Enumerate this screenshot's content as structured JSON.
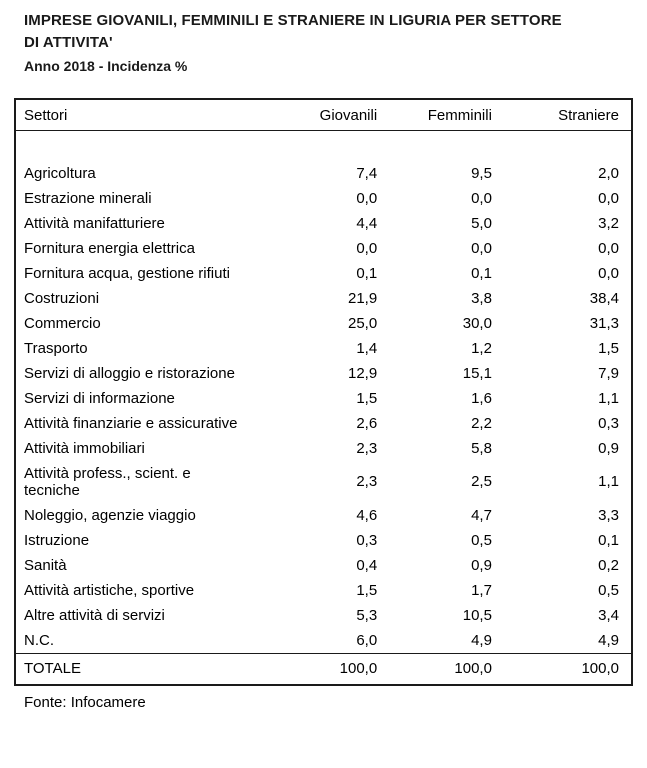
{
  "title": "IMPRESE GIOVANILI, FEMMINILI E STRANIERE IN LIGURIA PER SETTORE\nDI ATTIVITA'",
  "subtitle": "Anno 2018 - Incidenza %",
  "table": {
    "headers": [
      "Settori",
      "Giovanili",
      "Femminili",
      "Straniere"
    ],
    "rows": [
      [
        "Agricoltura",
        "7,4",
        "9,5",
        "2,0"
      ],
      [
        "Estrazione minerali",
        "0,0",
        "0,0",
        "0,0"
      ],
      [
        "Attività manifatturiere",
        "4,4",
        "5,0",
        "3,2"
      ],
      [
        "Fornitura energia elettrica",
        "0,0",
        "0,0",
        "0,0"
      ],
      [
        "Fornitura acqua, gestione rifiuti",
        "0,1",
        "0,1",
        "0,0"
      ],
      [
        "Costruzioni",
        "21,9",
        "3,8",
        "38,4"
      ],
      [
        "Commercio",
        "25,0",
        "30,0",
        "31,3"
      ],
      [
        "Trasporto",
        "1,4",
        "1,2",
        "1,5"
      ],
      [
        "Servizi di alloggio e ristorazione",
        "12,9",
        "15,1",
        "7,9"
      ],
      [
        "Servizi di informazione",
        "1,5",
        "1,6",
        "1,1"
      ],
      [
        "Attività finanziarie e assicurative",
        "2,6",
        "2,2",
        "0,3"
      ],
      [
        "Attività immobiliari",
        "2,3",
        "5,8",
        "0,9"
      ],
      [
        "Attività profess., scient. e\ntecniche",
        "2,3",
        "2,5",
        "1,1"
      ],
      [
        "Noleggio, agenzie viaggio",
        "4,6",
        "4,7",
        "3,3"
      ],
      [
        "Istruzione",
        "0,3",
        "0,5",
        "0,1"
      ],
      [
        "Sanità",
        "0,4",
        "0,9",
        "0,2"
      ],
      [
        "Attività artistiche, sportive",
        "1,5",
        "1,7",
        "0,5"
      ],
      [
        "Altre attività di servizi",
        "5,3",
        "10,5",
        "3,4"
      ],
      [
        "N.C.",
        "6,0",
        "4,9",
        "4,9"
      ]
    ],
    "total": {
      "label": "TOTALE",
      "values": [
        "100,0",
        "100,0",
        "100,0"
      ]
    }
  },
  "source": "Fonte: Infocamere",
  "chart_data": {
    "type": "table",
    "title": "IMPRESE GIOVANILI, FEMMINILI E STRANIERE IN LIGURIA PER SETTORE DI ATTIVITA'",
    "subtitle": "Anno 2018 - Incidenza %",
    "columns": [
      "Settori",
      "Giovanili",
      "Femminili",
      "Straniere"
    ],
    "categories": [
      "Agricoltura",
      "Estrazione minerali",
      "Attività manifatturiere",
      "Fornitura energia elettrica",
      "Fornitura acqua, gestione rifiuti",
      "Costruzioni",
      "Commercio",
      "Trasporto",
      "Servizi di alloggio e ristorazione",
      "Servizi di informazione",
      "Attività finanziarie e assicurative",
      "Attività immobiliari",
      "Attività profess., scient. e tecniche",
      "Noleggio, agenzie viaggio",
      "Istruzione",
      "Sanità",
      "Attività artistiche, sportive",
      "Altre attività di servizi",
      "N.C."
    ],
    "series": [
      {
        "name": "Giovanili",
        "values": [
          7.4,
          0.0,
          4.4,
          0.0,
          0.1,
          21.9,
          25.0,
          1.4,
          12.9,
          1.5,
          2.6,
          2.3,
          2.3,
          4.6,
          0.3,
          0.4,
          1.5,
          5.3,
          6.0
        ]
      },
      {
        "name": "Femminili",
        "values": [
          9.5,
          0.0,
          5.0,
          0.0,
          0.1,
          3.8,
          30.0,
          1.2,
          15.1,
          1.6,
          2.2,
          5.8,
          2.5,
          4.7,
          0.5,
          0.9,
          1.7,
          10.5,
          4.9
        ]
      },
      {
        "name": "Straniere",
        "values": [
          2.0,
          0.0,
          3.2,
          0.0,
          0.0,
          38.4,
          31.3,
          1.5,
          7.9,
          1.1,
          0.3,
          0.9,
          1.1,
          3.3,
          0.1,
          0.2,
          0.5,
          3.4,
          4.9
        ]
      }
    ],
    "totals": {
      "Giovanili": 100.0,
      "Femminili": 100.0,
      "Straniere": 100.0
    },
    "unit": "Incidenza %",
    "source": "Fonte: Infocamere"
  }
}
